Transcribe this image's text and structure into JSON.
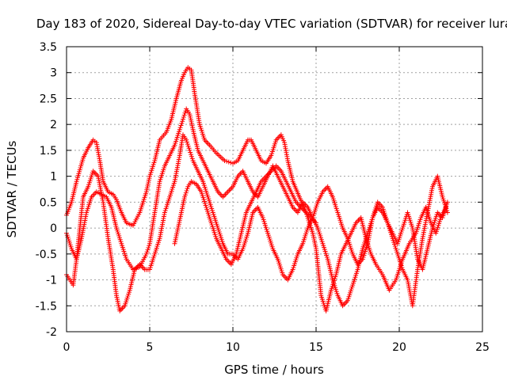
{
  "chart_data": {
    "type": "scatter",
    "title": "Day 183 of 2020, Sidereal Day-to-day VTEC variation (SDTVAR) for receiver lura",
    "xlabel": "GPS time / hours",
    "ylabel": "SDTVAR / TECUs",
    "xlim": [
      0,
      25
    ],
    "ylim": [
      -2,
      3.5
    ],
    "x_ticks": [
      0,
      5,
      10,
      15,
      20,
      25
    ],
    "y_ticks": [
      -2,
      -1.5,
      -1,
      -0.5,
      0,
      0.5,
      1,
      1.5,
      2,
      2.5,
      3,
      3.5
    ],
    "x_tick_labels": [
      "0",
      "5",
      "10",
      "15",
      "20",
      "25"
    ],
    "y_tick_labels": [
      "-2",
      "-1.5",
      "-1",
      "-0.5",
      "0",
      "0.5",
      "1",
      "1.5",
      "2",
      "2.5",
      "3",
      "3.5"
    ],
    "grid": true,
    "marker": "+",
    "color": "#ff0000",
    "series": [
      {
        "x": [
          0.0,
          0.3,
          0.6,
          1.0,
          1.3,
          1.6,
          1.8,
          2.0,
          2.2,
          2.5,
          2.8,
          3.0,
          3.3,
          3.6,
          4.0,
          4.4,
          4.8,
          5.0,
          5.3,
          5.6,
          6.0,
          6.3,
          6.6,
          6.9,
          7.1,
          7.3,
          7.5,
          7.7,
          8.0,
          8.3,
          8.6,
          9.0,
          9.5,
          10.0,
          10.3,
          10.6,
          10.9,
          11.1,
          11.4,
          11.7,
          12.0,
          12.3,
          12.6,
          12.9,
          13.1,
          13.3,
          13.6,
          14.0,
          14.4,
          14.8,
          15.0,
          15.3,
          15.6,
          15.9,
          16.2,
          16.5,
          16.8,
          17.1,
          17.4,
          17.7,
          18.0,
          18.3,
          18.6,
          19.0,
          19.4,
          19.8,
          20.2,
          20.6,
          21.0,
          21.3,
          21.6,
          21.9,
          22.2,
          22.5,
          22.8
        ],
        "y": [
          0.25,
          0.5,
          0.9,
          1.35,
          1.55,
          1.7,
          1.65,
          1.3,
          0.9,
          0.7,
          0.65,
          0.55,
          0.3,
          0.1,
          0.05,
          0.3,
          0.7,
          1.0,
          1.3,
          1.7,
          1.85,
          2.1,
          2.5,
          2.85,
          3.0,
          3.1,
          3.05,
          2.6,
          2.0,
          1.7,
          1.6,
          1.45,
          1.3,
          1.25,
          1.3,
          1.5,
          1.7,
          1.7,
          1.5,
          1.3,
          1.25,
          1.4,
          1.7,
          1.8,
          1.65,
          1.3,
          0.9,
          0.6,
          0.3,
          -0.1,
          -0.4,
          -1.3,
          -1.6,
          -1.2,
          -0.9,
          -0.5,
          -0.3,
          -0.1,
          0.1,
          0.2,
          -0.2,
          -0.5,
          -0.7,
          -0.9,
          -1.2,
          -1.0,
          -0.6,
          -0.3,
          -0.1,
          0.2,
          0.4,
          0.1,
          -0.1,
          0.2,
          0.4
        ]
      },
      {
        "x": [
          0.0,
          0.3,
          0.6,
          0.9,
          1.2,
          1.5,
          1.8,
          2.1,
          2.4,
          2.7,
          3.0,
          3.3,
          3.6,
          4.0,
          4.4,
          4.8,
          5.0,
          5.3,
          5.6,
          5.9,
          6.2,
          6.5,
          6.8,
          7.0,
          7.2,
          7.4,
          7.6,
          7.9,
          8.2,
          8.5,
          8.8,
          9.1,
          9.4,
          9.7,
          10.0,
          10.3,
          10.6,
          10.9,
          11.2,
          11.5,
          11.8,
          12.1,
          12.4,
          12.7,
          13.0,
          13.3,
          13.6,
          13.9,
          14.2,
          14.5,
          14.8,
          15.1,
          15.4,
          15.7,
          16.0,
          16.3,
          16.6,
          16.9,
          17.2,
          17.5,
          17.8,
          18.1,
          18.4,
          18.7,
          19.0,
          19.3,
          19.6,
          19.9,
          20.2,
          20.5,
          20.8,
          21.1,
          21.4,
          21.7,
          22.0,
          22.3,
          22.6,
          22.9
        ],
        "y": [
          -0.1,
          -0.4,
          -0.6,
          -0.2,
          0.3,
          0.6,
          0.7,
          0.65,
          0.6,
          0.4,
          0.0,
          -0.3,
          -0.6,
          -0.8,
          -0.75,
          -0.5,
          -0.3,
          0.3,
          0.9,
          1.2,
          1.4,
          1.6,
          1.9,
          2.1,
          2.3,
          2.2,
          1.9,
          1.5,
          1.3,
          1.1,
          0.9,
          0.7,
          0.6,
          0.7,
          0.8,
          1.0,
          1.1,
          0.9,
          0.7,
          0.6,
          0.8,
          1.0,
          1.2,
          1.0,
          0.8,
          0.6,
          0.4,
          0.3,
          0.5,
          0.4,
          0.2,
          0.0,
          -0.3,
          -0.6,
          -1.0,
          -1.3,
          -1.5,
          -1.4,
          -1.1,
          -0.8,
          -0.4,
          -0.1,
          0.2,
          0.4,
          0.3,
          0.1,
          -0.1,
          -0.3,
          0.0,
          0.3,
          0.0,
          -0.6,
          -0.8,
          -0.4,
          0.0,
          0.3,
          0.2,
          0.5
        ]
      },
      {
        "x": [
          0.0,
          0.2,
          0.4,
          0.6,
          0.8,
          1.0,
          1.3,
          1.6,
          1.9,
          2.2,
          2.5,
          2.8,
          3.0,
          3.2,
          3.5,
          3.8,
          4.1,
          4.4,
          4.7,
          5.0,
          5.3,
          5.6,
          5.9,
          6.2,
          6.5,
          6.8,
          7.0,
          7.2,
          7.4,
          7.6,
          7.9,
          8.2,
          8.5,
          8.8,
          9.1,
          9.4,
          9.7,
          10.0,
          10.3,
          10.6,
          10.9,
          11.2,
          11.5,
          11.8,
          12.1,
          12.4,
          12.7,
          13.0,
          13.3,
          13.6,
          13.9,
          14.2,
          14.5,
          14.8,
          15.1,
          15.4,
          15.7,
          16.0,
          16.3,
          16.6,
          16.9,
          17.2,
          17.5,
          17.8,
          18.1,
          18.4,
          18.7,
          19.0,
          19.3,
          19.6,
          19.9,
          20.2,
          20.5,
          20.8,
          21.1,
          21.4,
          21.7,
          22.0,
          22.3,
          22.6,
          22.9
        ],
        "y": [
          -0.9,
          -1.0,
          -1.1,
          -0.6,
          0.0,
          0.6,
          0.8,
          1.1,
          1.0,
          0.5,
          -0.2,
          -0.8,
          -1.3,
          -1.6,
          -1.5,
          -1.2,
          -0.8,
          -0.7,
          -0.8,
          -0.8,
          -0.5,
          -0.2,
          0.3,
          0.6,
          0.9,
          1.4,
          1.8,
          1.7,
          1.5,
          1.3,
          1.1,
          0.9,
          0.6,
          0.3,
          0.0,
          -0.3,
          -0.5,
          -0.5,
          -0.6,
          -0.4,
          -0.1,
          0.3,
          0.4,
          0.2,
          -0.1,
          -0.4,
          -0.6,
          -0.9,
          -1.0,
          -0.8,
          -0.5,
          -0.3,
          0.0,
          0.2,
          0.5,
          0.7,
          0.8,
          0.6,
          0.3,
          0.0,
          -0.2,
          -0.5,
          -0.7,
          -0.6,
          -0.3,
          0.2,
          0.5,
          0.4,
          0.1,
          -0.2,
          -0.5,
          -0.8,
          -1.0,
          -1.5,
          -0.8,
          -0.2,
          0.3,
          0.8,
          1.0,
          0.6,
          0.3
        ]
      },
      {
        "x": [
          6.5,
          6.7,
          6.9,
          7.1,
          7.3,
          7.5,
          7.8,
          8.1,
          8.4,
          8.7,
          9.0,
          9.3,
          9.6,
          9.9,
          10.2,
          10.5,
          10.8,
          11.1,
          11.4,
          11.7,
          12.0,
          12.3,
          12.6,
          12.9,
          13.2,
          13.5,
          13.8,
          14.1,
          14.4,
          14.7,
          15.0
        ],
        "y": [
          -0.3,
          0.0,
          0.3,
          0.6,
          0.8,
          0.9,
          0.85,
          0.7,
          0.4,
          0.1,
          -0.2,
          -0.4,
          -0.6,
          -0.7,
          -0.5,
          -0.1,
          0.3,
          0.5,
          0.7,
          0.9,
          1.0,
          1.1,
          1.2,
          1.1,
          0.9,
          0.7,
          0.5,
          0.4,
          0.3,
          0.2,
          0.1
        ]
      }
    ]
  }
}
